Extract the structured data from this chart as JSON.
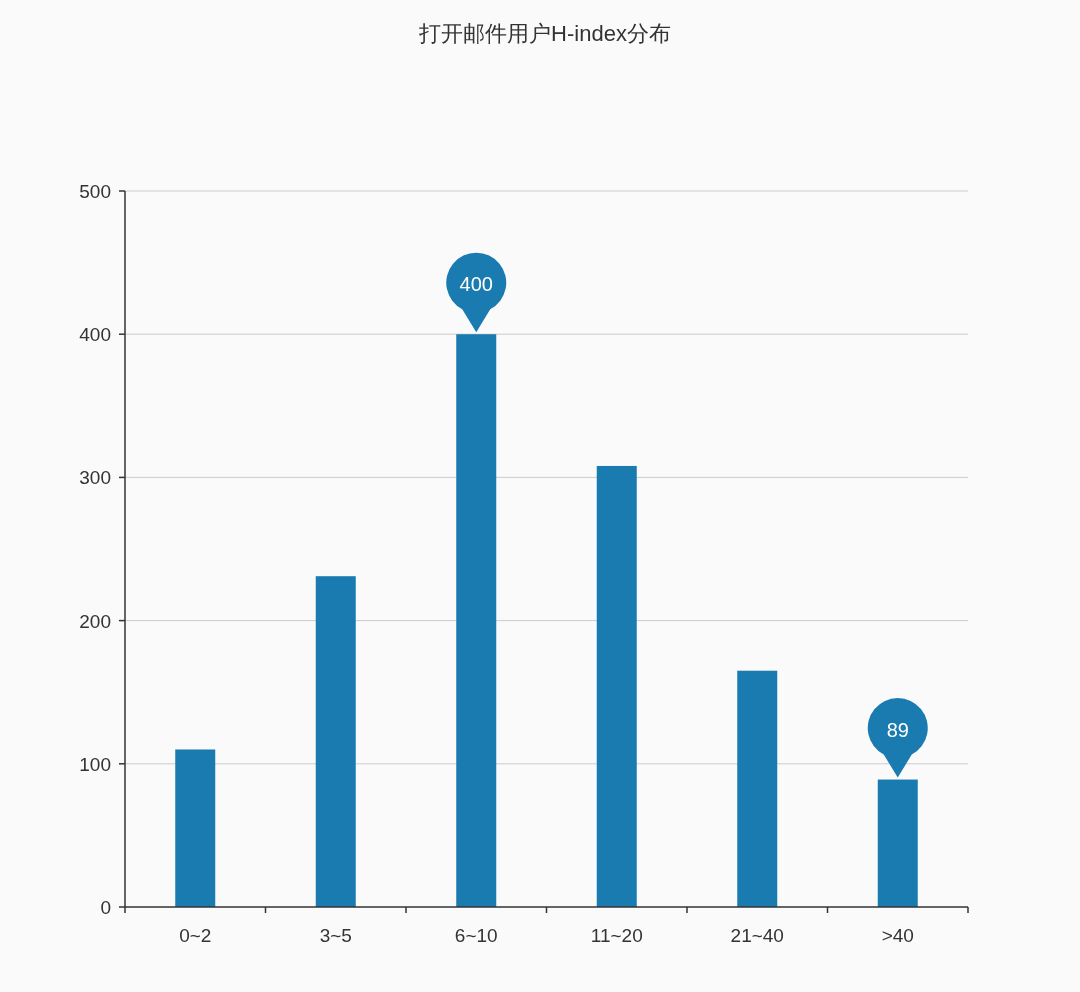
{
  "chart_data": {
    "type": "bar",
    "title": "打开邮件用户H-index分布",
    "categories": [
      "0~2",
      "3~5",
      "6~10",
      "11~20",
      "21~40",
      ">40"
    ],
    "values": [
      110,
      231,
      400,
      308,
      165,
      89
    ],
    "value_labels": [
      null,
      null,
      "400",
      null,
      null,
      "89"
    ],
    "color": "#1a7bb0",
    "ylim": [
      0,
      500
    ],
    "yticks": [
      0,
      100,
      200,
      300,
      400,
      500
    ],
    "grid": "y"
  }
}
